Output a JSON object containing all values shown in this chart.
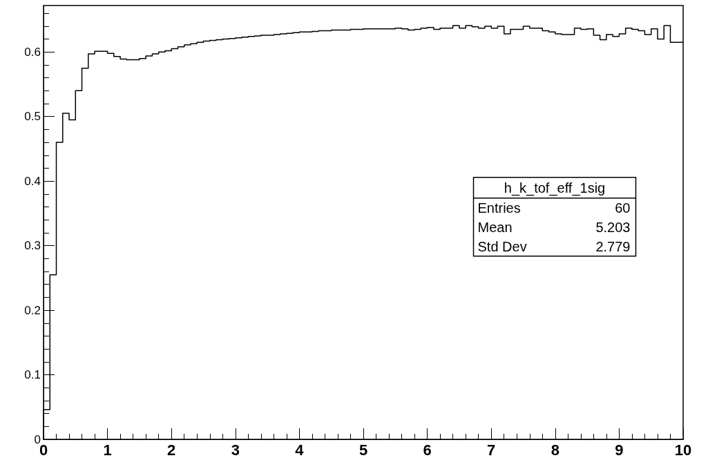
{
  "chart_data": {
    "type": "histogram",
    "color": "#000000",
    "bins": [
      0,
      0.1,
      0.2,
      0.3,
      0.4,
      0.5,
      0.6,
      0.7,
      0.8,
      0.9,
      1,
      1.1,
      1.2,
      1.3,
      1.4,
      1.5,
      1.6,
      1.7,
      1.8,
      1.9,
      2,
      2.1,
      2.2,
      2.3,
      2.4,
      2.5,
      2.6,
      2.7,
      2.8,
      2.9,
      3,
      3.1,
      3.2,
      3.3,
      3.4,
      3.5,
      3.6,
      3.7,
      3.8,
      3.9,
      4,
      4.1,
      4.2,
      4.3,
      4.4,
      4.5,
      4.6,
      4.7,
      4.8,
      4.9,
      5,
      5.1,
      5.2,
      5.3,
      5.4,
      5.5,
      5.6,
      5.7,
      5.8,
      5.9,
      6,
      6.1,
      6.2,
      6.3,
      6.4,
      6.5,
      6.6,
      6.7,
      6.8,
      6.9,
      7,
      7.1,
      7.2,
      7.3,
      7.4,
      7.5,
      7.6,
      7.7,
      7.8,
      7.9,
      8,
      8.1,
      8.2,
      8.3,
      8.4,
      8.5,
      8.6,
      8.7,
      8.8,
      8.9,
      9,
      9.1,
      9.2,
      9.3,
      9.4,
      9.5,
      9.6,
      9.7,
      9.8,
      9.9,
      10
    ],
    "values": [
      0.046,
      0.255,
      0.46,
      0.505,
      0.495,
      0.54,
      0.575,
      0.597,
      0.601,
      0.601,
      0.598,
      0.593,
      0.589,
      0.588,
      0.588,
      0.59,
      0.594,
      0.597,
      0.6,
      0.602,
      0.605,
      0.608,
      0.611,
      0.613,
      0.615,
      0.617,
      0.618,
      0.619,
      0.62,
      0.621,
      0.622,
      0.623,
      0.624,
      0.625,
      0.626,
      0.626,
      0.627,
      0.628,
      0.629,
      0.63,
      0.631,
      0.631,
      0.632,
      0.633,
      0.633,
      0.634,
      0.634,
      0.634,
      0.635,
      0.635,
      0.636,
      0.636,
      0.636,
      0.636,
      0.636,
      0.637,
      0.636,
      0.634,
      0.635,
      0.637,
      0.638,
      0.635,
      0.637,
      0.637,
      0.641,
      0.637,
      0.641,
      0.639,
      0.637,
      0.64,
      0.637,
      0.64,
      0.628,
      0.635,
      0.635,
      0.64,
      0.637,
      0.637,
      0.633,
      0.631,
      0.628,
      0.627,
      0.627,
      0.637,
      0.635,
      0.636,
      0.626,
      0.619,
      0.627,
      0.624,
      0.628,
      0.637,
      0.635,
      0.633,
      0.627,
      0.636,
      0.62,
      0.641,
      0.615,
      0.615
    ],
    "xlim": [
      0,
      10
    ],
    "xticks": [
      0,
      1,
      2,
      3,
      4,
      5,
      6,
      7,
      8,
      9,
      10
    ],
    "ylim": [
      0,
      0.672
    ],
    "yticks": [
      0,
      0.1,
      0.2,
      0.3,
      0.4,
      0.5,
      0.6
    ],
    "grid": false,
    "legend": false,
    "annotations": [
      "h_k_tof_eff_1sig",
      "Entries",
      "60",
      "Mean",
      "5.203",
      "Std Dev",
      "2.779"
    ]
  }
}
